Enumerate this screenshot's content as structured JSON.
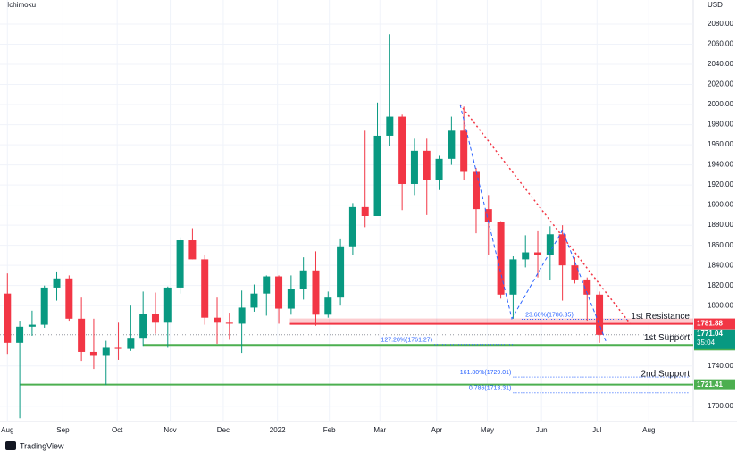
{
  "chart_data": {
    "type": "candlestick",
    "title": "Ichimoku",
    "currency": "USD",
    "brand": "TradingView",
    "ohlc": [
      [
        1812,
        1832,
        1752,
        1763
      ],
      [
        1763,
        1785,
        1688,
        1779
      ],
      [
        1779,
        1795,
        1770,
        1781
      ],
      [
        1781,
        1820,
        1778,
        1818
      ],
      [
        1818,
        1834,
        1805,
        1827
      ],
      [
        1827,
        1830,
        1785,
        1787
      ],
      [
        1787,
        1808,
        1745,
        1754
      ],
      [
        1754,
        1787,
        1737,
        1750
      ],
      [
        1750,
        1765,
        1721,
        1758
      ],
      [
        1758,
        1783,
        1746,
        1757
      ],
      [
        1757,
        1800,
        1755,
        1768
      ],
      [
        1768,
        1814,
        1760,
        1792
      ],
      [
        1792,
        1813,
        1772,
        1783
      ],
      [
        1783,
        1819,
        1758,
        1818
      ],
      [
        1818,
        1868,
        1812,
        1865
      ],
      [
        1865,
        1877,
        1846,
        1846
      ],
      [
        1846,
        1850,
        1781,
        1788
      ],
      [
        1788,
        1808,
        1762,
        1783
      ],
      [
        1783,
        1793,
        1766,
        1782
      ],
      [
        1782,
        1815,
        1753,
        1798
      ],
      [
        1798,
        1821,
        1794,
        1812
      ],
      [
        1812,
        1830,
        1790,
        1829
      ],
      [
        1829,
        1830,
        1782,
        1797
      ],
      [
        1797,
        1830,
        1791,
        1817
      ],
      [
        1817,
        1848,
        1806,
        1835
      ],
      [
        1835,
        1854,
        1780,
        1791
      ],
      [
        1791,
        1814,
        1788,
        1808
      ],
      [
        1808,
        1866,
        1800,
        1859
      ],
      [
        1859,
        1902,
        1850,
        1898
      ],
      [
        1898,
        1974,
        1878,
        1889
      ],
      [
        1889,
        2002,
        1889,
        1969
      ],
      [
        1969,
        2070,
        1959,
        1988
      ],
      [
        1988,
        1990,
        1895,
        1921
      ],
      [
        1921,
        1966,
        1910,
        1954
      ],
      [
        1954,
        1966,
        1890,
        1925
      ],
      [
        1925,
        1949,
        1915,
        1946
      ],
      [
        1946,
        1988,
        1940,
        1974
      ],
      [
        1974,
        1998,
        1925,
        1933
      ],
      [
        1933,
        1937,
        1872,
        1896
      ],
      [
        1896,
        1910,
        1850,
        1883
      ],
      [
        1883,
        1884,
        1807,
        1811
      ],
      [
        1811,
        1849,
        1787,
        1846
      ],
      [
        1846,
        1870,
        1838,
        1853
      ],
      [
        1853,
        1874,
        1828,
        1850
      ],
      [
        1850,
        1879,
        1825,
        1871
      ],
      [
        1871,
        1880,
        1805,
        1840
      ],
      [
        1840,
        1848,
        1822,
        1826
      ],
      [
        1826,
        1828,
        1785,
        1811
      ],
      [
        1811,
        1814,
        1763,
        1771
      ]
    ],
    "up_color": "#089981",
    "down_color": "#f23645",
    "xlim": [
      -0.6,
      55.6
    ],
    "ylim": [
      1690,
      2088
    ],
    "xticks": [
      {
        "value": 0,
        "label": "Aug"
      },
      {
        "value": 4.5,
        "label": "Sep"
      },
      {
        "value": 8.9,
        "label": "Oct"
      },
      {
        "value": 13.2,
        "label": "Nov"
      },
      {
        "value": 17.5,
        "label": "Dec"
      },
      {
        "value": 21.9,
        "label": "2022"
      },
      {
        "value": 26.1,
        "label": "Feb"
      },
      {
        "value": 30.2,
        "label": "Mar"
      },
      {
        "value": 34.8,
        "label": "Apr"
      },
      {
        "value": 38.9,
        "label": "May"
      },
      {
        "value": 43.3,
        "label": "Jun"
      },
      {
        "value": 47.8,
        "label": "Jul"
      },
      {
        "value": 52,
        "label": "Aug"
      }
    ],
    "yticks": [
      {
        "value": 2080,
        "label": "2080.00"
      },
      {
        "value": 2060,
        "label": "2060.00"
      },
      {
        "value": 2040,
        "label": "2040.00"
      },
      {
        "value": 2020,
        "label": "2020.00"
      },
      {
        "value": 2000,
        "label": "2000.00"
      },
      {
        "value": 1980,
        "label": "1980.00"
      },
      {
        "value": 1960,
        "label": "1960.00"
      },
      {
        "value": 1940,
        "label": "1940.00"
      },
      {
        "value": 1920,
        "label": "1920.00"
      },
      {
        "value": 1900,
        "label": "1900.00"
      },
      {
        "value": 1880,
        "label": "1880.00"
      },
      {
        "value": 1860,
        "label": "1860.00"
      },
      {
        "value": 1840,
        "label": "1840.00"
      },
      {
        "value": 1820,
        "label": "1820.00"
      },
      {
        "value": 1800,
        "label": "1800.00"
      },
      {
        "value": 1740,
        "label": "1740.00"
      },
      {
        "value": 1700,
        "label": "1700.00"
      }
    ],
    "levels": [
      {
        "label": "1st Resistance",
        "value": 1781.88,
        "color": "#f23645",
        "x_start": 22.9
      },
      {
        "label": "1st Support",
        "value": 1760.8,
        "color": "#4caf50",
        "x_start": 11
      },
      {
        "label": "2nd Support",
        "value": 1721.41,
        "color": "#4caf50",
        "x_start": 1
      }
    ],
    "fib_levels": [
      {
        "label": "23.60%(1786.35)",
        "value": 1786.35
      },
      {
        "label": "127.20%(1761.27)",
        "value": 1761.27
      },
      {
        "label": "161.80%(1729.01)",
        "value": 1729.01
      },
      {
        "label": "0.786(1713.31)",
        "value": 1713.31
      }
    ],
    "last_price": 1771.04,
    "countdown": "35:04",
    "trendline": {
      "x": [
        36.7,
        50.5
      ],
      "y": [
        2000,
        1781.88
      ]
    },
    "pattern": {
      "x": [
        36.7,
        40.9,
        45,
        48.6
      ],
      "y": [
        2000,
        1787,
        1875,
        1762
      ]
    }
  }
}
